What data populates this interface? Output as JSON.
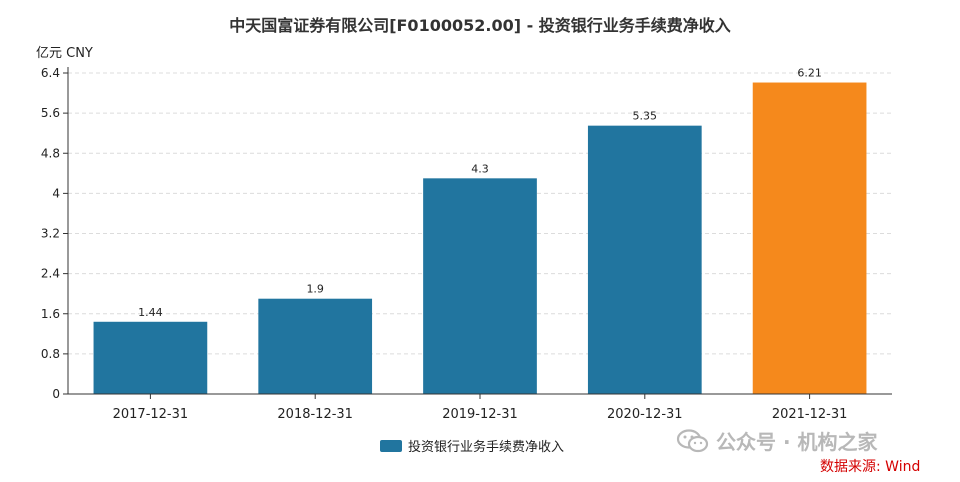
{
  "chart_data": {
    "type": "bar",
    "title": "中天国富证券有限公司[F0100052.00] - 投资银行业务手续费净收入",
    "unit_label": "亿元  CNY",
    "categories": [
      "2017-12-31",
      "2018-12-31",
      "2019-12-31",
      "2020-12-31",
      "2021-12-31"
    ],
    "series": [
      {
        "name": "投资银行业务手续费净收入",
        "values": [
          1.44,
          1.9,
          4.3,
          5.35,
          6.21
        ]
      }
    ],
    "data_labels": [
      "1.44",
      "1.9",
      "4.3",
      "5.35",
      "6.21"
    ],
    "yticks": [
      "0",
      "0.8",
      "1.6",
      "2.4",
      "3.2",
      "4",
      "4.8",
      "5.6",
      "6.4"
    ],
    "ylim": [
      0,
      6.4
    ],
    "grid": true,
    "legend_position": "bottom",
    "colors": {
      "bar": "#21759f",
      "highlight": "#f5891c"
    },
    "highlight_index": 4
  },
  "watermark": {
    "icon": "wechat-icon",
    "text": "公众号 · 机构之家"
  },
  "source": "数据来源: Wind"
}
